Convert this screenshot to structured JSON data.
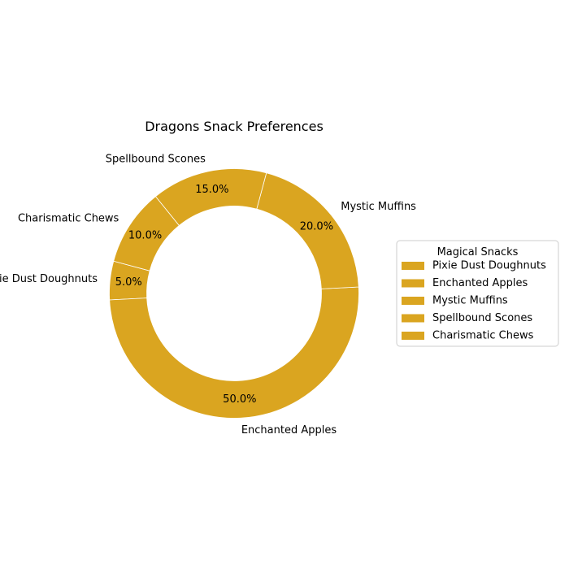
{
  "chart_data": {
    "type": "pie",
    "style": "donut",
    "title": "Dragons Snack Preferences",
    "categories": [
      "Pixie Dust Doughnuts",
      "Enchanted Apples",
      "Mystic Muffins",
      "Spellbound Scones",
      "Charismatic Chews"
    ],
    "values": [
      5.0,
      50.0,
      20.0,
      15.0,
      10.0
    ],
    "value_labels": [
      "5.0%",
      "50.0%",
      "20.0%",
      "15.0%",
      "10.0%"
    ],
    "slice_color": "#DAA520",
    "edge_color": "#ffffff",
    "legend": {
      "title": "Magical Snacks",
      "placement": "right",
      "entries": [
        "Pixie Dust Doughnuts",
        "Enchanted Apples",
        "Mystic Muffins",
        "Spellbound Scones",
        "Charismatic Chews"
      ]
    }
  }
}
